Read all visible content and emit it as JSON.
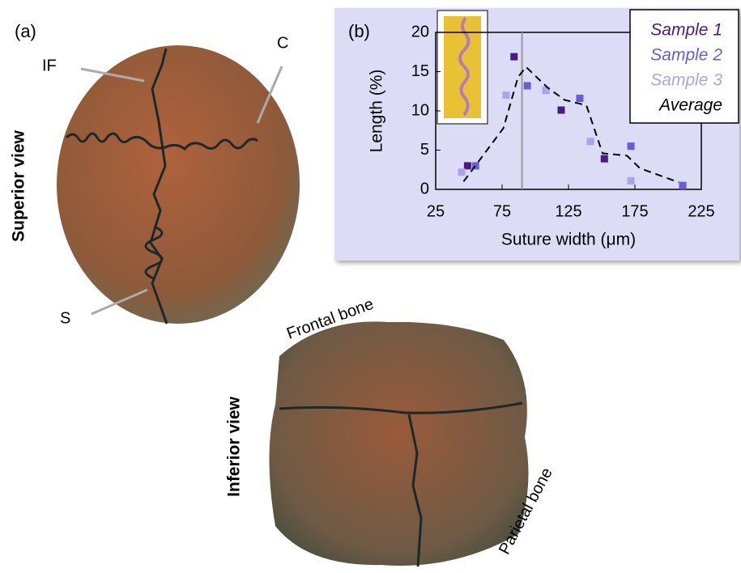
{
  "panel_a": {
    "label": "(a)",
    "arrows": [
      "IF",
      "C",
      "S"
    ],
    "views": [
      "Superior view",
      "Inferior view"
    ],
    "bones": [
      "Frontal bone",
      "Parietal bone"
    ]
  },
  "chart_data": {
    "type": "scatter",
    "panel_label": "(b)",
    "x_label": "Suture width (μm)",
    "y_label": "Length (%)",
    "xlim": [
      25,
      225
    ],
    "xticks": [
      25,
      75,
      125,
      175,
      225
    ],
    "ylim": [
      0,
      20
    ],
    "yticks": [
      0,
      5,
      10,
      15,
      20
    ],
    "reference_line": 90,
    "series": [
      {
        "name": "Sample 1",
        "color": "#4b1a80",
        "marker": "square",
        "x": [
          49,
          84,
          119.5,
          152,
          211
        ],
        "values": [
          3.0,
          16.9,
          10.1,
          3.9,
          0.4
        ]
      },
      {
        "name": "Sample 2",
        "color": "#6b5bd6",
        "marker": "square",
        "x": [
          55,
          94,
          133.5,
          172,
          211
        ],
        "values": [
          3.0,
          13.2,
          11.6,
          5.5,
          0.5
        ]
      },
      {
        "name": "Sample 3",
        "color": "#aaa4ea",
        "marker": "square",
        "x": [
          44.5,
          78,
          108,
          141.5,
          172
        ],
        "values": [
          2.2,
          12.0,
          12.6,
          6.1,
          1.1
        ]
      },
      {
        "name": "Average",
        "color": "#000000",
        "marker": "dashed-line",
        "x": [
          46,
          76,
          87,
          93,
          109,
          122,
          138.5,
          150.6,
          169,
          178.7,
          208
        ],
        "values": [
          1.0,
          7.8,
          14.3,
          15.6,
          13.0,
          11.4,
          10.7,
          4.6,
          4.3,
          2.7,
          0.9
        ]
      }
    ]
  }
}
